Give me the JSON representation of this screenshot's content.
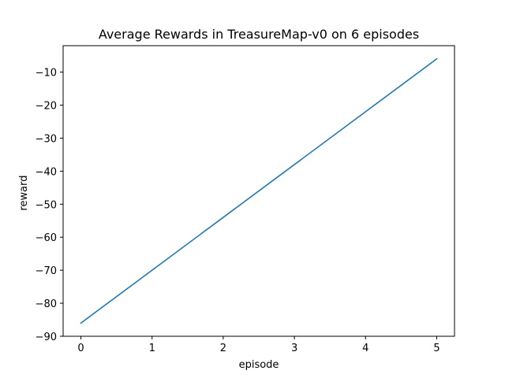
{
  "chart_data": {
    "type": "line",
    "title": "Average Rewards in TreasureMap-v0 on 6 episodes",
    "xlabel": "episode",
    "ylabel": "reward",
    "x": [
      0,
      1,
      2,
      3,
      4,
      5
    ],
    "series": [
      {
        "values": [
          -86,
          -70,
          -54,
          -38,
          -22,
          -6
        ],
        "color": "#1f77b4"
      }
    ],
    "xlim": [
      -0.25,
      5.25
    ],
    "ylim": [
      -90,
      -2
    ],
    "xticks": [
      0,
      1,
      2,
      3,
      4,
      5
    ],
    "xtick_labels": [
      "0",
      "1",
      "2",
      "3",
      "4",
      "5"
    ],
    "yticks": [
      -90,
      -80,
      -70,
      -60,
      -50,
      -40,
      -30,
      -20,
      -10
    ],
    "ytick_labels": [
      "−90",
      "−80",
      "−70",
      "−60",
      "−50",
      "−40",
      "−30",
      "−20",
      "−10"
    ],
    "grid": false,
    "legend": false
  }
}
